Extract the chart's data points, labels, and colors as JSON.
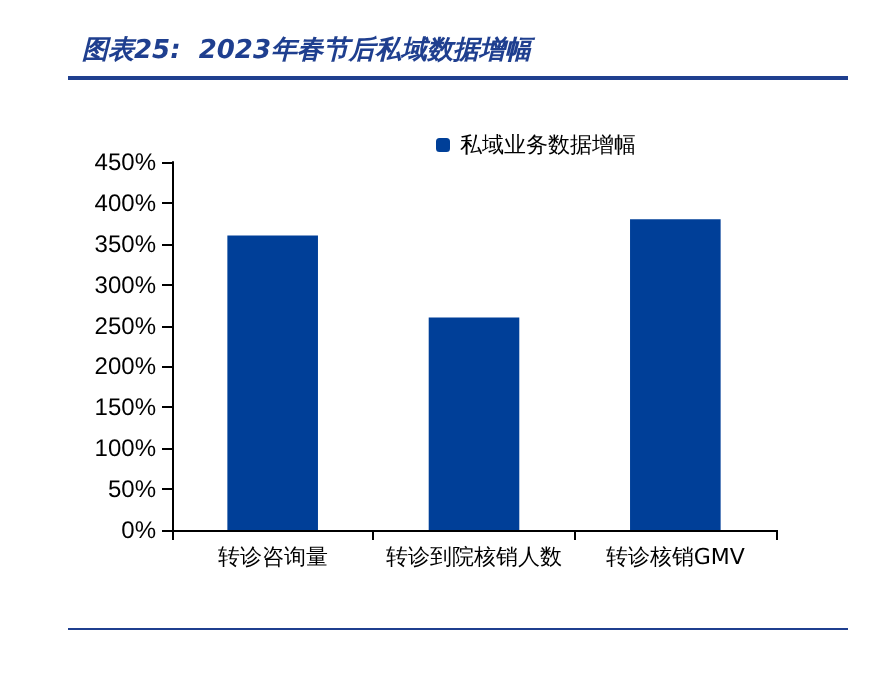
{
  "chart_data": {
    "type": "bar",
    "title": "图表25:  2023年春节后私域数据增幅",
    "categories": [
      "转诊咨询量",
      "转诊到院核销人数",
      "转诊核销GMV"
    ],
    "series": [
      {
        "name": "私域业务数据增幅",
        "color": "#003f98",
        "values": [
          360,
          260,
          380
        ]
      }
    ],
    "ylim": [
      0,
      450
    ],
    "yticks": [
      {
        "value": 0,
        "label": "0%"
      },
      {
        "value": 50,
        "label": "50%"
      },
      {
        "value": 100,
        "label": "100%"
      },
      {
        "value": 150,
        "label": "150%"
      },
      {
        "value": 200,
        "label": "200%"
      },
      {
        "value": 250,
        "label": "250%"
      },
      {
        "value": 300,
        "label": "300%"
      },
      {
        "value": 350,
        "label": "350%"
      },
      {
        "value": 400,
        "label": "400%"
      },
      {
        "value": 450,
        "label": "450%"
      }
    ],
    "legend": "top right",
    "grid": false
  }
}
